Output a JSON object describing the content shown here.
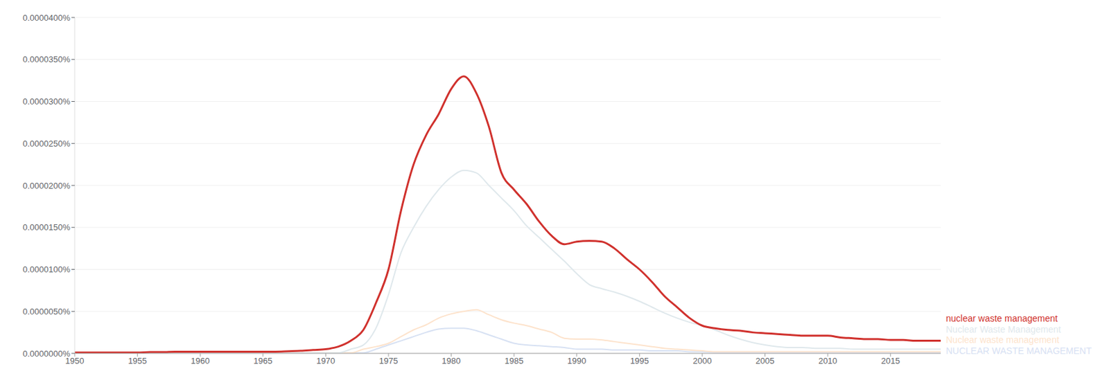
{
  "chart_data": {
    "type": "line",
    "x": [
      1950,
      1951,
      1952,
      1953,
      1954,
      1955,
      1956,
      1957,
      1958,
      1959,
      1960,
      1961,
      1962,
      1963,
      1964,
      1965,
      1966,
      1967,
      1968,
      1969,
      1970,
      1971,
      1972,
      1973,
      1974,
      1975,
      1976,
      1977,
      1978,
      1979,
      1980,
      1981,
      1982,
      1983,
      1984,
      1985,
      1986,
      1987,
      1988,
      1989,
      1990,
      1991,
      1992,
      1993,
      1994,
      1995,
      1996,
      1997,
      1998,
      1999,
      2000,
      2001,
      2002,
      2003,
      2004,
      2005,
      2006,
      2007,
      2008,
      2009,
      2010,
      2011,
      2012,
      2013,
      2014,
      2015,
      2016,
      2017,
      2018,
      2019
    ],
    "series": [
      {
        "name": "nuclear waste management",
        "color": "#d0312d",
        "values": [
          1e-07,
          1e-07,
          1e-07,
          1e-07,
          1e-07,
          1e-07,
          1.5e-07,
          1.5e-07,
          2e-07,
          2e-07,
          2e-07,
          2e-07,
          2e-07,
          2e-07,
          2e-07,
          2e-07,
          2e-07,
          2.5e-07,
          3e-07,
          4e-07,
          5e-07,
          8e-07,
          1.5e-06,
          2.8e-06,
          6e-06,
          1e-05,
          1.7e-05,
          2.25e-05,
          2.6e-05,
          2.85e-05,
          3.15e-05,
          3.3e-05,
          3.1e-05,
          2.7e-05,
          2.15e-05,
          1.95e-05,
          1.78e-05,
          1.57e-05,
          1.4e-05,
          1.3e-05,
          1.33e-05,
          1.34e-05,
          1.33e-05,
          1.25e-05,
          1.12e-05,
          1e-05,
          8.5e-06,
          6.8e-06,
          5.5e-06,
          4.2e-06,
          3.3e-06,
          3e-06,
          2.8e-06,
          2.7e-06,
          2.5e-06,
          2.4e-06,
          2.3e-06,
          2.2e-06,
          2.1e-06,
          2.1e-06,
          2.1e-06,
          1.9e-06,
          1.8e-06,
          1.7e-06,
          1.7e-06,
          1.6e-06,
          1.6e-06,
          1.5e-06,
          1.5e-06,
          1.5e-06
        ]
      },
      {
        "name": "Nuclear Waste Management",
        "color": "#dfe8ec",
        "values": [
          5e-08,
          5e-08,
          5e-08,
          5e-08,
          5e-08,
          5e-08,
          5e-08,
          5e-08,
          5e-08,
          5e-08,
          5e-08,
          5e-08,
          5e-08,
          5e-08,
          5e-08,
          5e-08,
          5e-08,
          5e-08,
          5e-08,
          5e-08,
          5e-08,
          5e-08,
          5e-07,
          1e-06,
          3e-06,
          7e-06,
          1.2e-05,
          1.5e-05,
          1.75e-05,
          1.95e-05,
          2.1e-05,
          2.18e-05,
          2.15e-05,
          2e-05,
          1.85e-05,
          1.7e-05,
          1.52e-05,
          1.38e-05,
          1.24e-05,
          1.1e-05,
          9.5e-06,
          8.2e-06,
          7.7e-06,
          7.3e-06,
          6.8e-06,
          6.2e-06,
          5.5e-06,
          4.8e-06,
          4.2e-06,
          3.7e-06,
          3.3e-06,
          2.8e-06,
          2.2e-06,
          1.7e-06,
          1.3e-06,
          1e-06,
          8e-07,
          7e-07,
          7e-07,
          6e-07,
          6e-07,
          6e-07,
          5e-07,
          5e-07,
          5e-07,
          5e-07,
          5e-07,
          5e-07,
          5e-07,
          5e-07
        ]
      },
      {
        "name": "Nuclear waste management",
        "color": "#fde3cc",
        "values": [
          5e-08,
          5e-08,
          5e-08,
          5e-08,
          5e-08,
          5e-08,
          5e-08,
          5e-08,
          5e-08,
          5e-08,
          5e-08,
          5e-08,
          5e-08,
          5e-08,
          5e-08,
          5e-08,
          5e-08,
          5e-08,
          5e-08,
          5e-08,
          5e-08,
          5e-08,
          5e-08,
          5e-07,
          8e-07,
          1.2e-06,
          2e-06,
          2.8e-06,
          3.4e-06,
          4.2e-06,
          4.7e-06,
          5e-06,
          5.2e-06,
          4.6e-06,
          4e-06,
          3.6e-06,
          3.3e-06,
          2.9e-06,
          2.5e-06,
          1.8e-06,
          1.7e-06,
          1.7e-06,
          1.6e-06,
          1.4e-06,
          1.2e-06,
          1e-06,
          8e-07,
          6e-07,
          5e-07,
          4e-07,
          3e-07,
          2e-07,
          2e-07,
          2e-07,
          2e-07,
          2e-07,
          2e-07,
          2e-07,
          2e-07,
          2e-07,
          2e-07,
          2e-07,
          2e-07,
          2e-07,
          2e-07,
          2e-07,
          2e-07,
          2e-07,
          2e-07,
          2e-07
        ]
      },
      {
        "name": "NUCLEAR WASTE MANAGEMENT",
        "color": "#d7e1f3",
        "values": [
          5e-08,
          5e-08,
          5e-08,
          5e-08,
          5e-08,
          5e-08,
          5e-08,
          5e-08,
          5e-08,
          5e-08,
          5e-08,
          5e-08,
          5e-08,
          5e-08,
          5e-08,
          5e-08,
          5e-08,
          5e-08,
          5e-08,
          5e-08,
          5e-08,
          5e-08,
          5e-08,
          5e-08,
          5e-07,
          1e-06,
          1.5e-06,
          2e-06,
          2.5e-06,
          2.9e-06,
          3e-06,
          3e-06,
          2.7e-06,
          2.2e-06,
          1.7e-06,
          1.2e-06,
          1e-06,
          9e-07,
          8e-07,
          7e-07,
          5e-07,
          5e-07,
          5e-07,
          4e-07,
          4e-07,
          4e-07,
          3e-07,
          3e-07,
          3e-07,
          2e-07,
          2e-07,
          1e-07,
          1e-07,
          1e-07,
          1e-07,
          1e-07,
          1e-07,
          1e-07,
          1e-07,
          1e-07,
          1e-07,
          1e-07,
          1e-07,
          1e-07,
          1e-07,
          1e-07,
          1e-07,
          1e-07,
          1e-07,
          1e-07
        ]
      }
    ],
    "xlim": [
      1950,
      2019
    ],
    "xticks": [
      1950,
      1955,
      1960,
      1965,
      1970,
      1975,
      1980,
      1985,
      1990,
      1995,
      2000,
      2005,
      2010,
      2015
    ],
    "ylim": [
      0,
      4e-05
    ],
    "yticks": [
      {
        "value": 0,
        "label": "0.0000000%"
      },
      {
        "value": 5e-06,
        "label": "0.0000050%"
      },
      {
        "value": 1e-05,
        "label": "0.0000100%"
      },
      {
        "value": 1.5e-05,
        "label": "0.0000150%"
      },
      {
        "value": 2e-05,
        "label": "0.0000200%"
      },
      {
        "value": 2.5e-05,
        "label": "0.0000250%"
      },
      {
        "value": 3e-05,
        "label": "0.0000300%"
      },
      {
        "value": 3.5e-05,
        "label": "0.0000350%"
      },
      {
        "value": 4e-05,
        "label": "0.0000400%"
      }
    ],
    "grid": true,
    "legend": "right"
  }
}
